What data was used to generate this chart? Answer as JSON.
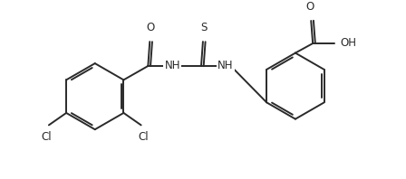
{
  "bg_color": "#ffffff",
  "line_color": "#2a2a2a",
  "line_width": 1.4,
  "font_size": 8.5,
  "figsize": [
    4.48,
    1.98
  ],
  "dpi": 100,
  "xlim": [
    0,
    448
  ],
  "ylim": [
    0,
    198
  ]
}
